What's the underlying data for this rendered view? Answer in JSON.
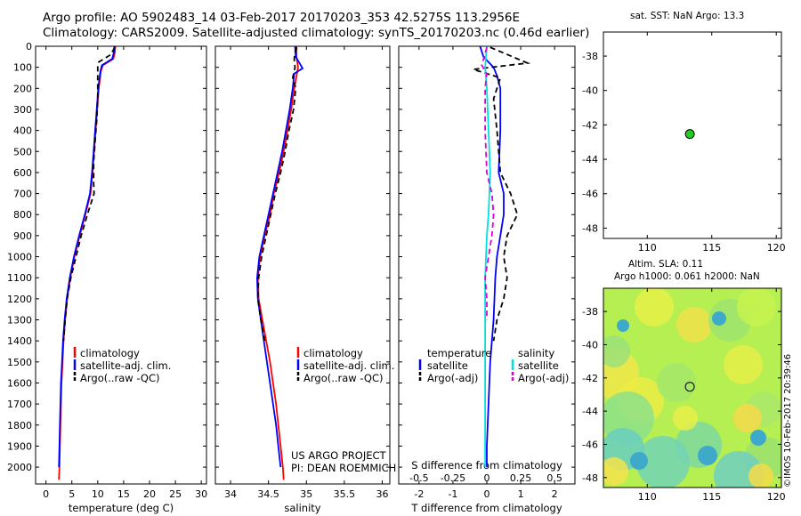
{
  "header": {
    "title_line1": "Argo profile: AO 5902483_14 03-Feb-2017 20170203_353 42.5275S 113.2956E",
    "title_line2": "Climatology: CARS2009. Satellite-adjusted climatology: synTS_20170203.nc (0.46d earlier)"
  },
  "map_top": {
    "title": "sat. SST: NaN Argo: 13.3",
    "xticks": [
      "110",
      "115",
      "120"
    ],
    "yticks": [
      "-38",
      "-40",
      "-42",
      "-44",
      "-46",
      "-48"
    ],
    "point": {
      "lon": 113.3,
      "lat": -42.53
    },
    "marker_color": "#22cc22"
  },
  "map_bottom": {
    "title_line1": "Altim. SLA: 0.11",
    "title_line2": "Argo h1000: 0.061 h2000: NaN",
    "xticks": [
      "110",
      "115",
      "120"
    ],
    "yticks": [
      "-38",
      "-40",
      "-42",
      "-44",
      "-46",
      "-48"
    ],
    "point": {
      "lon": 113.3,
      "lat": -42.53
    },
    "credit": "©IMOS 10-Feb-2017 20:39:46"
  },
  "chart_data": [
    {
      "type": "line",
      "xlabel": "temperature (deg C)",
      "xlim": [
        -2,
        31
      ],
      "xticks": [
        "0",
        "5",
        "10",
        "15",
        "20",
        "25",
        "30"
      ],
      "ylim": [
        0,
        2080
      ],
      "yticks": [
        "0",
        "100",
        "200",
        "300",
        "400",
        "500",
        "600",
        "700",
        "800",
        "900",
        "1000",
        "1100",
        "1200",
        "1300",
        "1400",
        "1500",
        "1600",
        "1700",
        "1800",
        "1900",
        "2000"
      ],
      "legend": [
        "climatology",
        "satellite-adj. clim.",
        "Argo(..raw -QC)"
      ],
      "legend_position": "lower-right",
      "series": [
        {
          "name": "climatology",
          "color": "#ff0000",
          "style": "solid",
          "values": [
            [
              13.4,
              0
            ],
            [
              13.3,
              30
            ],
            [
              13.0,
              60
            ],
            [
              11.0,
              90
            ],
            [
              10.6,
              120
            ],
            [
              10.2,
              200
            ],
            [
              9.9,
              300
            ],
            [
              9.6,
              400
            ],
            [
              9.3,
              500
            ],
            [
              9.0,
              600
            ],
            [
              8.6,
              700
            ],
            [
              7.6,
              800
            ],
            [
              6.5,
              900
            ],
            [
              5.5,
              1000
            ],
            [
              4.7,
              1100
            ],
            [
              4.1,
              1200
            ],
            [
              3.7,
              1300
            ],
            [
              3.4,
              1400
            ],
            [
              3.2,
              1500
            ],
            [
              3.0,
              1600
            ],
            [
              2.9,
              1700
            ],
            [
              2.8,
              1800
            ],
            [
              2.7,
              1900
            ],
            [
              2.6,
              2000
            ],
            [
              2.5,
              2060
            ]
          ]
        },
        {
          "name": "satellite-adj. clim.",
          "color": "#0000ff",
          "style": "solid",
          "values": [
            [
              13.2,
              0
            ],
            [
              13.1,
              30
            ],
            [
              12.8,
              60
            ],
            [
              10.8,
              90
            ],
            [
              10.5,
              120
            ],
            [
              10.1,
              200
            ],
            [
              9.8,
              300
            ],
            [
              9.5,
              400
            ],
            [
              9.2,
              500
            ],
            [
              8.9,
              600
            ],
            [
              8.5,
              700
            ],
            [
              7.5,
              800
            ],
            [
              6.4,
              900
            ],
            [
              5.4,
              1000
            ],
            [
              4.6,
              1100
            ],
            [
              4.0,
              1200
            ],
            [
              3.6,
              1300
            ],
            [
              3.3,
              1400
            ],
            [
              3.1,
              1500
            ],
            [
              2.9,
              1600
            ],
            [
              2.8,
              1700
            ],
            [
              2.7,
              1800
            ],
            [
              2.6,
              1900
            ],
            [
              2.5,
              2000
            ]
          ]
        },
        {
          "name": "Argo(..raw -QC)",
          "color": "#000000",
          "style": "dashed",
          "values": [
            [
              13.3,
              5
            ],
            [
              12.5,
              40
            ],
            [
              10.2,
              75
            ],
            [
              10.0,
              100
            ],
            [
              10.0,
              150
            ],
            [
              10.0,
              250
            ],
            [
              9.8,
              350
            ],
            [
              9.5,
              450
            ],
            [
              9.2,
              550
            ],
            [
              9.2,
              650
            ],
            [
              9.3,
              700
            ],
            [
              8.0,
              800
            ],
            [
              6.8,
              900
            ],
            [
              5.8,
              1000
            ],
            [
              4.8,
              1100
            ],
            [
              4.1,
              1200
            ],
            [
              3.7,
              1300
            ],
            [
              3.4,
              1400
            ]
          ]
        }
      ],
      "annotation": ""
    },
    {
      "type": "line",
      "xlabel": "salinity",
      "xlim": [
        33.8,
        36.1
      ],
      "xticks": [
        "34",
        "34.5",
        "35",
        "35.5",
        "36"
      ],
      "ylim": [
        0,
        2080
      ],
      "legend": [
        "climatology",
        "satellite-adj. clim.",
        "Argo(..raw -QC)"
      ],
      "legend_position": "lower-right",
      "annotation_line1": "US ARGO PROJECT",
      "annotation_line2": "PI: DEAN ROEMMICH",
      "series": [
        {
          "name": "climatology",
          "color": "#ff0000",
          "style": "solid",
          "values": [
            [
              34.87,
              0
            ],
            [
              34.87,
              50
            ],
            [
              34.89,
              100
            ],
            [
              34.84,
              200
            ],
            [
              34.8,
              300
            ],
            [
              34.75,
              400
            ],
            [
              34.7,
              500
            ],
            [
              34.64,
              600
            ],
            [
              34.57,
              700
            ],
            [
              34.52,
              800
            ],
            [
              34.45,
              900
            ],
            [
              34.39,
              1000
            ],
            [
              34.36,
              1100
            ],
            [
              34.37,
              1200
            ],
            [
              34.42,
              1300
            ],
            [
              34.47,
              1400
            ],
            [
              34.52,
              1500
            ],
            [
              34.56,
              1600
            ],
            [
              34.6,
              1700
            ],
            [
              34.63,
              1800
            ],
            [
              34.66,
              1900
            ],
            [
              34.69,
              2000
            ],
            [
              34.7,
              2060
            ]
          ]
        },
        {
          "name": "satellite-adj. clim.",
          "color": "#0000ff",
          "style": "solid",
          "values": [
            [
              34.85,
              0
            ],
            [
              34.86,
              50
            ],
            [
              34.95,
              105
            ],
            [
              34.84,
              130
            ],
            [
              34.82,
              200
            ],
            [
              34.78,
              300
            ],
            [
              34.73,
              400
            ],
            [
              34.68,
              500
            ],
            [
              34.62,
              600
            ],
            [
              34.56,
              700
            ],
            [
              34.5,
              800
            ],
            [
              34.44,
              900
            ],
            [
              34.38,
              1000
            ],
            [
              34.35,
              1100
            ],
            [
              34.36,
              1200
            ],
            [
              34.4,
              1300
            ],
            [
              34.44,
              1400
            ],
            [
              34.48,
              1500
            ],
            [
              34.52,
              1600
            ],
            [
              34.56,
              1700
            ],
            [
              34.6,
              1800
            ],
            [
              34.63,
              1900
            ],
            [
              34.66,
              2000
            ]
          ]
        },
        {
          "name": "Argo(..raw -QC)",
          "color": "#000000",
          "style": "dashed",
          "values": [
            [
              34.87,
              5
            ],
            [
              34.85,
              30
            ],
            [
              34.84,
              60
            ],
            [
              34.85,
              100
            ],
            [
              34.82,
              150
            ],
            [
              34.86,
              200
            ],
            [
              34.83,
              300
            ],
            [
              34.77,
              400
            ],
            [
              34.72,
              500
            ],
            [
              34.66,
              600
            ],
            [
              34.59,
              700
            ],
            [
              34.53,
              800
            ],
            [
              34.47,
              900
            ],
            [
              34.41,
              1000
            ],
            [
              34.37,
              1100
            ],
            [
              34.36,
              1200
            ],
            [
              34.4,
              1300
            ],
            [
              34.45,
              1400
            ]
          ]
        }
      ]
    },
    {
      "type": "line",
      "xlabel": "T difference from climatology",
      "xlabel_top": "S difference from climatology",
      "xlim": [
        -2.6,
        2.6
      ],
      "xticks": [
        "-2",
        "-1",
        "0",
        "1",
        "2"
      ],
      "xticks_top": [
        "-0.5",
        "-0.25",
        "0",
        "0.25",
        "0.5"
      ],
      "ylim": [
        0,
        2080
      ],
      "legend_left": {
        "title": "temperature",
        "items": [
          "satellite",
          "Argo(-adj)"
        ]
      },
      "legend_right": {
        "title": "salinity",
        "items": [
          "satellite",
          "Argo(-adj)"
        ]
      },
      "series": [
        {
          "name": "temperature satellite",
          "color": "#0000ff",
          "style": "solid",
          "values": [
            [
              -0.2,
              0
            ],
            [
              -0.1,
              50
            ],
            [
              0.2,
              100
            ],
            [
              0.3,
              140
            ],
            [
              0.4,
              200
            ],
            [
              0.4,
              400
            ],
            [
              0.35,
              600
            ],
            [
              0.5,
              700
            ],
            [
              0.5,
              800
            ],
            [
              0.4,
              900
            ],
            [
              0.3,
              1000
            ],
            [
              0.25,
              1100
            ],
            [
              0.2,
              1300
            ],
            [
              0.1,
              1500
            ],
            [
              0.05,
              1700
            ],
            [
              0.0,
              1900
            ],
            [
              0.0,
              2000
            ]
          ]
        },
        {
          "name": "temperature Argo(-adj)",
          "color": "#000000",
          "style": "dashed",
          "values": [
            [
              0.1,
              5
            ],
            [
              1.2,
              80
            ],
            [
              -0.4,
              110
            ],
            [
              0.4,
              150
            ],
            [
              0.2,
              250
            ],
            [
              0.3,
              400
            ],
            [
              0.4,
              600
            ],
            [
              0.7,
              700
            ],
            [
              0.9,
              800
            ],
            [
              0.6,
              900
            ],
            [
              0.5,
              1000
            ],
            [
              0.6,
              1100
            ],
            [
              0.5,
              1200
            ],
            [
              0.3,
              1300
            ],
            [
              0.2,
              1400
            ]
          ]
        },
        {
          "name": "salinity satellite",
          "color": "#00e0e0",
          "style": "solid",
          "values": [
            [
              0.0,
              0
            ],
            [
              -0.05,
              100
            ],
            [
              0.0,
              200
            ],
            [
              0.05,
              400
            ],
            [
              0.1,
              600
            ],
            [
              0.05,
              800
            ],
            [
              0.0,
              900
            ],
            [
              -0.05,
              1100
            ],
            [
              -0.05,
              1300
            ],
            [
              -0.05,
              1500
            ],
            [
              -0.05,
              1700
            ],
            [
              -0.05,
              1900
            ],
            [
              -0.05,
              2000
            ]
          ]
        },
        {
          "name": "salinity Argo(-adj)",
          "color": "#dd00dd",
          "style": "dashed",
          "values": [
            [
              0.0,
              5
            ],
            [
              -0.15,
              90
            ],
            [
              0.0,
              130
            ],
            [
              -0.05,
              200
            ],
            [
              -0.05,
              400
            ],
            [
              0.0,
              600
            ],
            [
              0.15,
              700
            ],
            [
              0.2,
              800
            ],
            [
              0.15,
              900
            ],
            [
              0.05,
              1000
            ],
            [
              -0.05,
              1100
            ],
            [
              0.0,
              1200
            ],
            [
              0.0,
              1300
            ]
          ]
        }
      ]
    }
  ]
}
